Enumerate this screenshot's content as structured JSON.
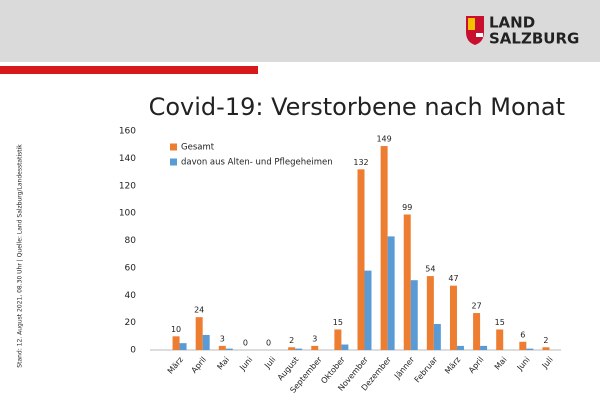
{
  "header": {
    "logo_line_1": "LAND",
    "logo_line_2": "SALZBURG"
  },
  "side_note": "Stand: 12. August  2021, 08.30 Uhr  |  Quelle: Land Salzburg/Landesstatistik",
  "chart_data": {
    "type": "bar",
    "title": "Covid-19: Verstorbene nach Monat",
    "categories": [
      "März",
      "April",
      "Mai",
      "Juni",
      "Juli",
      "August",
      "September",
      "Oktober",
      "November",
      "Dezember",
      "Jänner",
      "Februar",
      "März",
      "April",
      "Mai",
      "Juni",
      "Juli"
    ],
    "series": [
      {
        "name": "Gesamt",
        "color": "#ed7d31",
        "values": [
          10,
          24,
          3,
          0,
          0,
          2,
          3,
          15,
          132,
          149,
          99,
          54,
          47,
          27,
          15,
          6,
          2
        ]
      },
      {
        "name": "davon aus Alten- und Pflegeheimen",
        "color": "#5b9bd5",
        "values": [
          5,
          11,
          1,
          0,
          0,
          1,
          0,
          4,
          58,
          83,
          51,
          19,
          3,
          3,
          0,
          1,
          0
        ]
      }
    ],
    "ylim": [
      0,
      160
    ],
    "yticks": [
      0,
      20,
      40,
      60,
      80,
      100,
      120,
      140,
      160
    ],
    "grid": false
  }
}
